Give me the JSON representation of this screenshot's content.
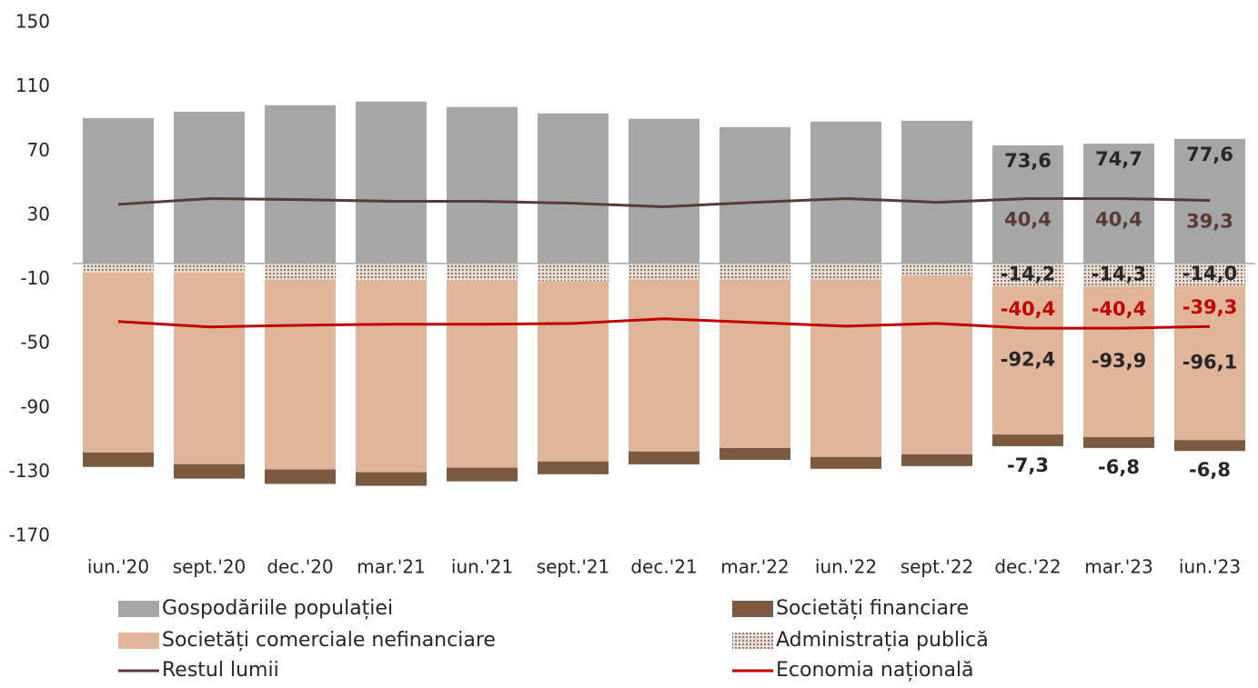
{
  "chart_data": {
    "type": "bar",
    "categories": [
      "iun.'20",
      "sept.'20",
      "dec.'20",
      "mar.'21",
      "iun.'21",
      "sept.'21",
      "dec.'21",
      "mar.'22",
      "iun.'22",
      "sept.'22",
      "dec.'22",
      "mar.'23",
      "iun.'23"
    ],
    "ylim": [
      -170,
      150
    ],
    "yticks": [
      150,
      110,
      70,
      30,
      -10,
      -50,
      -90,
      -130,
      -170
    ],
    "grid": false,
    "series": [
      {
        "name": "Gospodăriile populației",
        "type": "bar",
        "color": "#a6a6a6",
        "values": [
          90.6,
          94.6,
          98.6,
          100.9,
          97.5,
          93.5,
          90.1,
          85.0,
          88.4,
          88.9,
          73.6,
          74.7,
          77.6
        ],
        "value_labels": [
          null,
          null,
          null,
          null,
          null,
          null,
          null,
          null,
          null,
          null,
          "73,6",
          "74,7",
          "77,6"
        ]
      },
      {
        "name": "Administrația publică",
        "type": "bar",
        "color": "#bfae9f",
        "pattern": "hatch",
        "values": [
          -5.6,
          -5.6,
          -10.0,
          -10.6,
          -10.6,
          -11.0,
          -10.0,
          -10.0,
          -10.0,
          -7.4,
          -14.2,
          -14.3,
          -14.0
        ],
        "value_labels": [
          null,
          null,
          null,
          null,
          null,
          null,
          null,
          null,
          null,
          null,
          "-14,2",
          "-14,3",
          "-14,0"
        ]
      },
      {
        "name": "Societăți comerciale nefinanciare",
        "type": "bar",
        "color": "#e0b599",
        "values": [
          -112.2,
          -119.5,
          -118.4,
          -119.5,
          -116.7,
          -112.4,
          -107.2,
          -105.0,
          -110.6,
          -111.5,
          -92.4,
          -93.9,
          -96.1
        ],
        "value_labels": [
          null,
          null,
          null,
          null,
          null,
          null,
          null,
          null,
          null,
          null,
          "-92,4",
          "-93,9",
          "-96,1"
        ]
      },
      {
        "name": "Societăți financiare",
        "type": "bar",
        "color": "#7b5a41",
        "values": [
          -9.0,
          -9.0,
          -9.0,
          -8.5,
          -8.5,
          -8.0,
          -8.0,
          -7.4,
          -7.4,
          -7.4,
          -7.3,
          -6.8,
          -6.8
        ],
        "value_labels": [
          null,
          null,
          null,
          null,
          null,
          null,
          null,
          null,
          null,
          null,
          "-7,3",
          "-6,8",
          "-6,8"
        ]
      },
      {
        "name": "Restul lumii",
        "type": "line",
        "color": "#5a3a36",
        "values": [
          36.8,
          40.4,
          39.8,
          38.7,
          38.7,
          37.5,
          35.3,
          38.1,
          40.4,
          38.1,
          40.4,
          40.4,
          39.3
        ],
        "value_labels": [
          null,
          null,
          null,
          null,
          null,
          null,
          null,
          null,
          null,
          null,
          "40,4",
          "40,4",
          "39,3"
        ]
      },
      {
        "name": "Economia națională",
        "type": "line",
        "color": "#c00000",
        "values": [
          -36.2,
          -39.6,
          -38.5,
          -37.9,
          -37.9,
          -37.4,
          -34.5,
          -36.8,
          -39.1,
          -37.4,
          -40.4,
          -40.4,
          -39.3
        ],
        "value_labels": [
          null,
          null,
          null,
          null,
          null,
          null,
          null,
          null,
          null,
          null,
          "-40,4",
          "-40,4",
          "-39,3"
        ]
      }
    ]
  }
}
